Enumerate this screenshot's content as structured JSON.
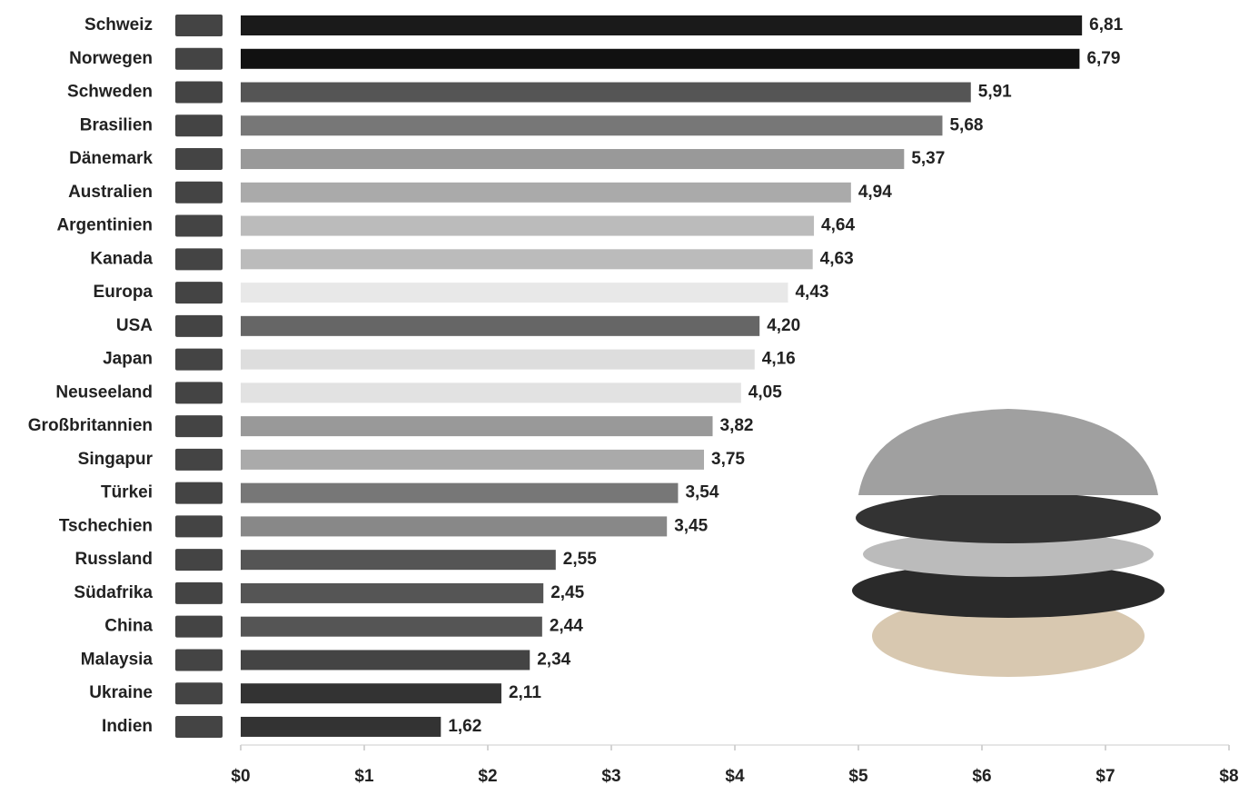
{
  "chart_data": {
    "type": "hbar",
    "categories": [
      "Schweiz",
      "Norwegen",
      "Schweden",
      "Brasilien",
      "Dänemark",
      "Australien",
      "Argentinien",
      "Kanada",
      "Europa",
      "USA",
      "Japan",
      "Neuseeland",
      "Großbritannien",
      "Singapur",
      "Türkei",
      "Tschechien",
      "Russland",
      "Südafrika",
      "China",
      "Malaysia",
      "Ukraine",
      "Indien"
    ],
    "values": [
      6.81,
      6.79,
      5.91,
      5.68,
      5.37,
      4.94,
      4.64,
      4.63,
      4.43,
      4.2,
      4.16,
      4.05,
      3.82,
      3.75,
      3.54,
      3.45,
      2.55,
      2.45,
      2.44,
      2.34,
      2.11,
      1.62
    ],
    "value_labels": [
      "6,81",
      "6,79",
      "5,91",
      "5,68",
      "5,37",
      "4,94",
      "4,64",
      "4,63",
      "4,43",
      "4,20",
      "4,16",
      "4,05",
      "3,82",
      "3,75",
      "3,54",
      "3,45",
      "2,55",
      "2,45",
      "2,44",
      "2,34",
      "2,11",
      "1,62"
    ],
    "colors": [
      "#1a1a1a",
      "#111111",
      "#555555",
      "#777777",
      "#999999",
      "#aaaaaa",
      "#bbbbbb",
      "#bbbbbb",
      "#e8e8e8",
      "#666666",
      "#dddddd",
      "#e2e2e2",
      "#999999",
      "#aaaaaa",
      "#777777",
      "#888888",
      "#555555",
      "#555555",
      "#555555",
      "#444444",
      "#333333",
      "#333333"
    ],
    "xlim": [
      0,
      8
    ],
    "xticks": [
      {
        "value": 0,
        "label": "$0"
      },
      {
        "value": 1,
        "label": "$1"
      },
      {
        "value": 2,
        "label": "$2"
      },
      {
        "value": 3,
        "label": "$3"
      },
      {
        "value": 4,
        "label": "$4"
      },
      {
        "value": 5,
        "label": "$5"
      },
      {
        "value": 6,
        "label": "$6"
      },
      {
        "value": 7,
        "label": "$7"
      },
      {
        "value": 8,
        "label": "$8"
      }
    ]
  }
}
